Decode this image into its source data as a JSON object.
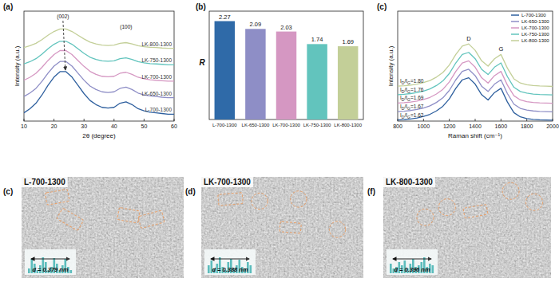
{
  "chart_data": [
    {
      "type": "line",
      "panel": "(a)",
      "xlabel": "2θ (degree)",
      "ylabel": "Intensity (a.u.)",
      "xlim": [
        10,
        60
      ],
      "xticks": [
        10,
        20,
        30,
        40,
        50,
        60
      ],
      "ylim": [
        0,
        8
      ],
      "tick_labels": "x",
      "x": [
        10,
        12,
        14,
        16,
        18,
        20,
        22,
        24,
        26,
        28,
        30,
        32,
        34,
        36,
        38,
        40,
        42,
        44,
        46,
        48,
        50,
        52,
        54,
        56,
        58,
        60
      ],
      "annotations": [
        {
          "text": "(002)",
          "x": 23
        },
        {
          "text": "(100)",
          "x": 44
        }
      ],
      "series": [
        {
          "name": "L-700-1300",
          "color": "#2e5f9e",
          "values": [
            0.6,
            0.9,
            1.3,
            1.9,
            2.6,
            3.2,
            3.6,
            3.6,
            3.2,
            2.6,
            2.0,
            1.5,
            1.2,
            1.0,
            0.95,
            1.0,
            1.3,
            1.4,
            1.2,
            0.9,
            0.75,
            0.65,
            0.6,
            0.55,
            0.5,
            0.5
          ]
        },
        {
          "name": "LK-650-1300",
          "color": "#8e8ec6",
          "values": [
            1.79,
            2.04,
            2.38,
            2.89,
            3.49,
            4.0,
            4.34,
            4.34,
            4.0,
            3.49,
            2.98,
            2.55,
            2.3,
            2.13,
            2.08,
            2.13,
            2.38,
            2.47,
            2.3,
            2.04,
            1.91,
            1.83,
            1.79,
            1.74,
            1.7,
            1.7
          ]
        },
        {
          "name": "LK-700-1300",
          "color": "#d597c2",
          "values": [
            2.97,
            3.19,
            3.48,
            3.91,
            4.41,
            4.84,
            5.13,
            5.13,
            4.84,
            4.41,
            3.98,
            3.62,
            3.4,
            3.26,
            3.22,
            3.26,
            3.48,
            3.55,
            3.4,
            3.19,
            3.08,
            3.01,
            2.97,
            2.94,
            2.9,
            2.9
          ]
        },
        {
          "name": "LK-750-1300",
          "color": "#62c4bd",
          "values": [
            4.16,
            4.32,
            4.54,
            4.87,
            5.26,
            5.59,
            5.81,
            5.81,
            5.59,
            5.26,
            4.93,
            4.65,
            4.49,
            4.38,
            4.35,
            4.38,
            4.54,
            4.6,
            4.49,
            4.32,
            4.24,
            4.18,
            4.16,
            4.13,
            4.1,
            4.1
          ]
        },
        {
          "name": "LK-800-1300",
          "color": "#c3cf98",
          "values": [
            5.35,
            5.48,
            5.66,
            5.93,
            6.25,
            6.52,
            6.7,
            6.7,
            6.52,
            6.25,
            5.98,
            5.75,
            5.62,
            5.53,
            5.5,
            5.53,
            5.66,
            5.71,
            5.62,
            5.48,
            5.41,
            5.37,
            5.35,
            5.32,
            5.3,
            5.3
          ]
        }
      ]
    },
    {
      "type": "bar",
      "panel": "(b)",
      "ylabel": "R",
      "ylim": [
        0,
        2.5
      ],
      "tick_labels": "x",
      "data_labels": true,
      "categories": [
        "L-700-1300",
        "LK-650-1300",
        "LK-700-1300",
        "LK-750-1300",
        "LK-800-1300"
      ],
      "values": [
        2.27,
        2.09,
        2.03,
        1.74,
        1.69
      ],
      "colors": [
        "#2f6aa8",
        "#8e8ec6",
        "#d597c2",
        "#62c4bd",
        "#c3cf98"
      ]
    },
    {
      "type": "line",
      "panel": "(c)",
      "xlabel": "Raman shift (cm⁻¹)",
      "ylabel": "Intensity (a.u.)",
      "xlim": [
        800,
        2000
      ],
      "xticks": [
        800,
        1000,
        1200,
        1400,
        1600,
        1800,
        2000
      ],
      "ylim": [
        0,
        5.2
      ],
      "tick_labels": "x",
      "legend": "top-right",
      "x": [
        800,
        850,
        900,
        950,
        1000,
        1050,
        1100,
        1150,
        1200,
        1250,
        1300,
        1350,
        1400,
        1450,
        1500,
        1550,
        1600,
        1650,
        1700,
        1750,
        1800,
        1850,
        1900,
        1950,
        2000
      ],
      "annotations": [
        {
          "text": "D",
          "x": 1350
        },
        {
          "text": "G",
          "x": 1600
        }
      ],
      "series": [
        {
          "name": "L-700-1300",
          "color": "#2e5f9e",
          "annotation": "ID/IG=1.62",
          "values": [
            0.05,
            0.07,
            0.1,
            0.15,
            0.22,
            0.32,
            0.48,
            0.7,
            1.05,
            1.55,
            1.95,
            2.05,
            1.75,
            1.25,
            1.0,
            1.35,
            1.55,
            0.9,
            0.4,
            0.2,
            0.12,
            0.08,
            0.06,
            0.05,
            0.04
          ]
        },
        {
          "name": "LK-650-1300",
          "color": "#8e8ec6",
          "annotation": "ID/IG=1.67",
          "values": [
            0.45,
            0.47,
            0.5,
            0.55,
            0.62,
            0.72,
            0.88,
            1.1,
            1.45,
            1.95,
            2.35,
            2.45,
            2.15,
            1.65,
            1.4,
            1.75,
            1.95,
            1.3,
            0.8,
            0.6,
            0.52,
            0.48,
            0.46,
            0.45,
            0.44
          ]
        },
        {
          "name": "LK-700-1300",
          "color": "#d597c2",
          "annotation": "ID/IG=1.69",
          "values": [
            0.85,
            0.87,
            0.9,
            0.95,
            1.02,
            1.12,
            1.28,
            1.5,
            1.85,
            2.35,
            2.75,
            2.85,
            2.55,
            2.05,
            1.8,
            2.15,
            2.35,
            1.7,
            1.2,
            1.0,
            0.92,
            0.88,
            0.86,
            0.85,
            0.84
          ]
        },
        {
          "name": "LK-750-1300",
          "color": "#62c4bd",
          "annotation": "ID/IG=1.76",
          "values": [
            1.25,
            1.27,
            1.3,
            1.35,
            1.42,
            1.52,
            1.68,
            1.9,
            2.25,
            2.75,
            3.15,
            3.25,
            2.95,
            2.45,
            2.2,
            2.55,
            2.75,
            2.1,
            1.6,
            1.4,
            1.32,
            1.28,
            1.26,
            1.25,
            1.24
          ]
        },
        {
          "name": "LK-800-1300",
          "color": "#c3cf98",
          "annotation": "ID/IG=1.80",
          "values": [
            1.65,
            1.67,
            1.7,
            1.75,
            1.82,
            1.92,
            2.08,
            2.3,
            2.65,
            3.15,
            3.55,
            3.65,
            3.35,
            2.85,
            2.6,
            2.95,
            3.15,
            2.5,
            2.0,
            1.8,
            1.72,
            1.68,
            1.66,
            1.65,
            1.64
          ]
        }
      ]
    }
  ],
  "images": [
    {
      "panel": "(c)",
      "title": "L-700-1300",
      "inset_label": "d = 0.379 nm",
      "profile": [
        0.3,
        0.9,
        0.6,
        0.2,
        0.5,
        1.0,
        0.7,
        0.2,
        0.4,
        0.95,
        0.6,
        0.2,
        0.5,
        0.9,
        0.4,
        0.2
      ]
    },
    {
      "panel": "(d)",
      "title": "LK-700-1300",
      "inset_label": "d = 0.388 nm",
      "profile": [
        0.5,
        0.8,
        0.3,
        0.6,
        1.0,
        0.4,
        0.2,
        0.7,
        0.9,
        0.3,
        0.5,
        0.85,
        0.4,
        0.3,
        0.7,
        0.5
      ]
    },
    {
      "panel": "(f)",
      "title": "LK-800-1300",
      "inset_label": "d = 0.396 nm",
      "profile": [
        0.6,
        0.3,
        0.4,
        0.7,
        0.5,
        0.8,
        0.3,
        0.6,
        0.9,
        0.4,
        0.5,
        0.7,
        1.0,
        0.4,
        0.6,
        0.5
      ]
    }
  ]
}
